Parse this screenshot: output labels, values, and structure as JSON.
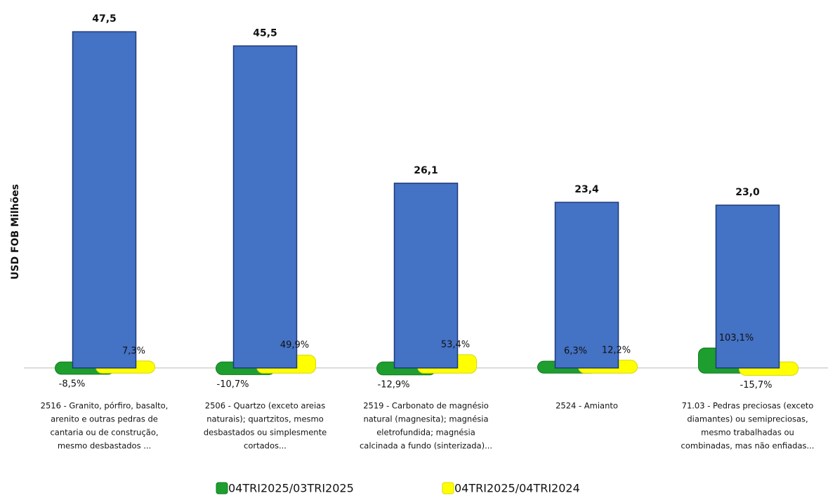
{
  "chart_data": {
    "type": "bar",
    "y_axis_label": "USD FOB Milhões",
    "categories": [
      [
        "2516 - Granito, pórfiro, basalto,",
        "arenito e outras pedras de",
        "cantaria ou de construção,",
        "mesmo desbastados ..."
      ],
      [
        "2506 - Quartzo (exceto areias",
        "naturais); quartzitos, mesmo",
        "desbastados ou simplesmente",
        "cortados..."
      ],
      [
        "2519 - Carbonato de magnésio",
        "natural (magnesita); magnésia",
        "eletrofundida; magnésia",
        "calcinada a fundo (sinterizada)..."
      ],
      [
        "2524 - Amianto"
      ],
      [
        "71.03 - Pedras preciosas (exceto",
        "diamantes) ou semipreciosas,",
        "mesmo trabalhadas ou",
        "combinadas, mas não enfiadas..."
      ]
    ],
    "values": [
      47.5,
      45.5,
      26.1,
      23.4,
      23.0
    ],
    "value_labels": [
      "47,5",
      "45,5",
      "26,1",
      "23,4",
      "23,0"
    ],
    "color": "#4472c4",
    "ylim": [
      -2,
      50
    ],
    "y2lim": [
      -107,
      2600
    ],
    "series": [
      {
        "name": "04TRI2025/03TRI2025",
        "color": "#1e9e2e",
        "axis": "y2",
        "values": [
          -8.5,
          -10.7,
          -12.9,
          6.3,
          103.1
        ],
        "value_labels": [
          "-8,5%",
          "-10,7%",
          "-12,9%",
          "6,3%",
          "103,1%"
        ]
      },
      {
        "name": "04TRI2025/04TRI2024",
        "color": "#ffff00",
        "axis": "y2",
        "values": [
          7.3,
          49.9,
          53.4,
          12.2,
          -15.7
        ],
        "value_labels": [
          "7,3%",
          "49,9%",
          "53,4%",
          "12,2%",
          "-15,7%"
        ]
      }
    ]
  }
}
